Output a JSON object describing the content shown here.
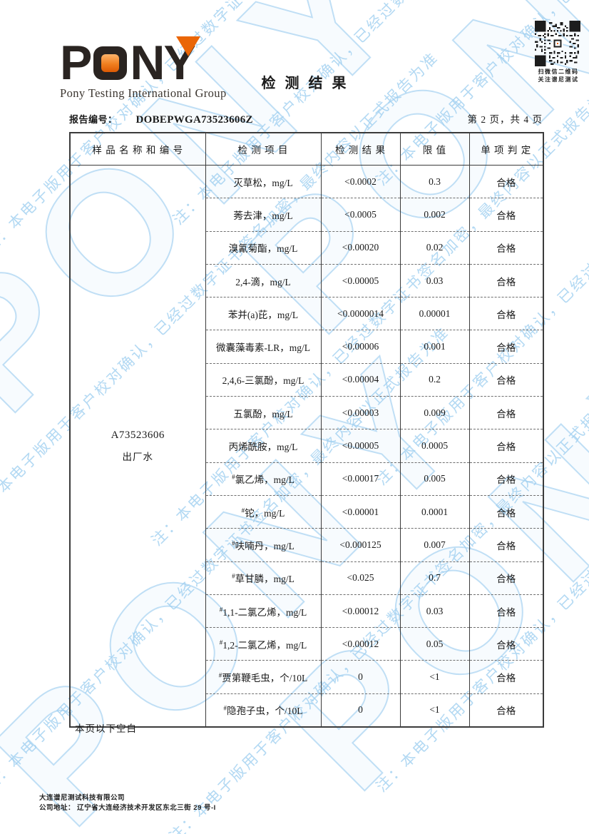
{
  "header": {
    "logo_text": "PONY",
    "logo_letters": {
      "p": "P",
      "n": "N",
      "y": "Y"
    },
    "logo_subtitle": "Pony Testing International Group",
    "title": "检 测 结 果",
    "qr_caption_line1": "扫微信二维码",
    "qr_caption_line2": "关注谱尼测试",
    "report_no_label": "报告编号：",
    "report_no": "DOBEPWGA73523606Z",
    "page_info": "第 2 页，共 4 页"
  },
  "sample": {
    "code": "A73523606",
    "type": "出厂水"
  },
  "table": {
    "headers": [
      "样 品 名 称 和 编 号",
      "检 测 项 目",
      "检 测 结 果",
      "限 值",
      "单 项 判 定"
    ],
    "rows": [
      {
        "prefix": "",
        "item": "灭草松，mg/L",
        "result": "<0.0002",
        "limit": "0.3",
        "verdict": "合格"
      },
      {
        "prefix": "",
        "item": "莠去津，mg/L",
        "result": "<0.0005",
        "limit": "0.002",
        "verdict": "合格"
      },
      {
        "prefix": "",
        "item": "溴氰菊酯，mg/L",
        "result": "<0.00020",
        "limit": "0.02",
        "verdict": "合格"
      },
      {
        "prefix": "",
        "item": "2,4-滴，mg/L",
        "result": "<0.00005",
        "limit": "0.03",
        "verdict": "合格"
      },
      {
        "prefix": "",
        "item": "苯并(a)芘，mg/L",
        "result": "<0.0000014",
        "limit": "0.00001",
        "verdict": "合格"
      },
      {
        "prefix": "",
        "item": "微囊藻毒素-LR，mg/L",
        "result": "<0.00006",
        "limit": "0.001",
        "verdict": "合格"
      },
      {
        "prefix": "",
        "item": "2,4,6-三氯酚，mg/L",
        "result": "<0.00004",
        "limit": "0.2",
        "verdict": "合格"
      },
      {
        "prefix": "",
        "item": "五氯酚，mg/L",
        "result": "<0.00003",
        "limit": "0.009",
        "verdict": "合格"
      },
      {
        "prefix": "",
        "item": "丙烯酰胺，mg/L",
        "result": "<0.00005",
        "limit": "0.0005",
        "verdict": "合格"
      },
      {
        "prefix": "#",
        "item": "氯乙烯，mg/L",
        "result": "<0.00017",
        "limit": "0.005",
        "verdict": "合格"
      },
      {
        "prefix": "#",
        "item": "铊，mg/L",
        "result": "<0.00001",
        "limit": "0.0001",
        "verdict": "合格"
      },
      {
        "prefix": "#",
        "item": "呋喃丹，mg/L",
        "result": "<0.000125",
        "limit": "0.007",
        "verdict": "合格"
      },
      {
        "prefix": "#",
        "item": "草甘膦，mg/L",
        "result": "<0.025",
        "limit": "0.7",
        "verdict": "合格"
      },
      {
        "prefix": "#",
        "item": "1,1-二氯乙烯，mg/L",
        "result": "<0.00012",
        "limit": "0.03",
        "verdict": "合格"
      },
      {
        "prefix": "#",
        "item": "1,2-二氯乙烯，mg/L",
        "result": "<0.00012",
        "limit": "0.05",
        "verdict": "合格"
      },
      {
        "prefix": "#",
        "item": "贾第鞭毛虫，个/10L",
        "result": "0",
        "limit": "<1",
        "verdict": "合格"
      },
      {
        "prefix": "#",
        "item": "隐孢子虫，个/10L",
        "result": "0",
        "limit": "<1",
        "verdict": "合格"
      }
    ]
  },
  "notes": {
    "end_of_page": "本页以下空白"
  },
  "footer": {
    "company": "大连谱尼测试科技有限公司",
    "address_label": "公司地址：",
    "address": "辽宁省大连经济技术开发区东北三街 29 号-I"
  },
  "watermark": {
    "note": "注：本电子版用于客户校对确认，已经过数字证书签名加密，最终内容以正式报告为准",
    "logo": "PONY"
  },
  "colors": {
    "accent_orange": "#ea6607",
    "logo_dark": "#2a2421",
    "watermark_blue": "#aed6f3",
    "border_dark": "#3b3b3b"
  }
}
